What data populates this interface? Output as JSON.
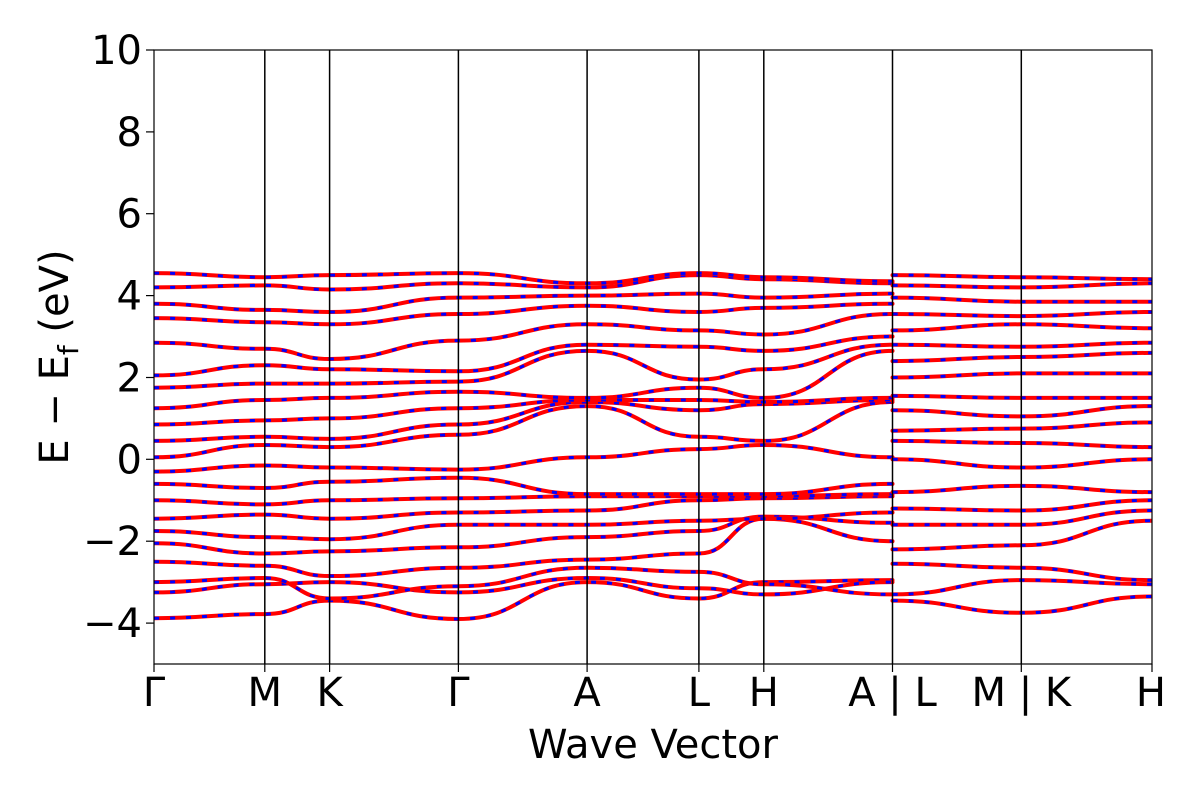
{
  "chart_data": {
    "type": "line",
    "title": "",
    "xlabel": "Wave Vector",
    "ylabel": "E − E_f (eV)",
    "ylabel_parts": {
      "pre": "E  −  E",
      "sub": "f",
      "post": " (eV)"
    },
    "ylim": [
      -5,
      10
    ],
    "yticks": [
      -4,
      -2,
      0,
      2,
      4,
      6,
      8,
      10
    ],
    "ytick_labels": [
      "−4",
      "−2",
      "0",
      "2",
      "4",
      "6",
      "8",
      "10"
    ],
    "xlim": [
      0,
      1
    ],
    "xticks": [
      0.0,
      0.111,
      0.176,
      0.305,
      0.434,
      0.546,
      0.611,
      0.74,
      0.869,
      1.0
    ],
    "xtick_labels": [
      "Γ",
      "M",
      "K",
      "Γ",
      "A",
      "L",
      "H",
      "A | L",
      "M | K",
      "H"
    ],
    "grid": false,
    "legend": "none",
    "colors": {
      "band_primary": "#ff0000",
      "band_secondary": "#0000ff",
      "axis": "#000000"
    },
    "series": [
      {
        "x": [
          0.0,
          0.111,
          0.176,
          0.305,
          0.434,
          0.546,
          0.611,
          0.74
        ],
        "y": [
          -3.88,
          -3.78,
          -3.45,
          -3.9,
          -3.0,
          -3.4,
          -3.0,
          -2.95
        ]
      },
      {
        "x": [
          0.0,
          0.111,
          0.176,
          0.305,
          0.434,
          0.546,
          0.611,
          0.74
        ],
        "y": [
          -3.25,
          -3.05,
          -3.0,
          -3.25,
          -2.9,
          -3.15,
          -3.3,
          -3.0
        ]
      },
      {
        "x": [
          0.0,
          0.111,
          0.176,
          0.305,
          0.434,
          0.546,
          0.611,
          0.74
        ],
        "y": [
          -3.0,
          -2.9,
          -3.4,
          -3.1,
          -2.65,
          -2.75,
          -3.05,
          -3.3
        ]
      },
      {
        "x": [
          0.0,
          0.111,
          0.176,
          0.305,
          0.434,
          0.546,
          0.611,
          0.74
        ],
        "y": [
          -2.5,
          -2.6,
          -2.85,
          -2.65,
          -2.45,
          -2.3,
          -1.45,
          -2.0
        ]
      },
      {
        "x": [
          0.0,
          0.111,
          0.176,
          0.305,
          0.434,
          0.546,
          0.611,
          0.74
        ],
        "y": [
          -2.05,
          -2.3,
          -2.25,
          -2.15,
          -1.9,
          -1.75,
          -1.4,
          -1.55
        ]
      },
      {
        "x": [
          0.0,
          0.111,
          0.176,
          0.305,
          0.434,
          0.546,
          0.611,
          0.74
        ],
        "y": [
          -1.75,
          -1.9,
          -1.95,
          -1.6,
          -1.6,
          -1.5,
          -1.45,
          -1.3
        ]
      },
      {
        "x": [
          0.0,
          0.111,
          0.176,
          0.305,
          0.434,
          0.546,
          0.611,
          0.74
        ],
        "y": [
          -1.45,
          -1.35,
          -1.45,
          -1.3,
          -1.25,
          -1.0,
          -0.95,
          -0.9
        ]
      },
      {
        "x": [
          0.0,
          0.111,
          0.176,
          0.305,
          0.434,
          0.546,
          0.611,
          0.74
        ],
        "y": [
          -1.0,
          -1.1,
          -1.0,
          -0.95,
          -0.9,
          -0.9,
          -0.9,
          -0.85
        ]
      },
      {
        "x": [
          0.0,
          0.111,
          0.176,
          0.305,
          0.434,
          0.546,
          0.611,
          0.74
        ],
        "y": [
          -0.6,
          -0.7,
          -0.55,
          -0.45,
          -0.85,
          -0.85,
          -0.85,
          -0.6
        ]
      },
      {
        "x": [
          0.0,
          0.111,
          0.176,
          0.305,
          0.434,
          0.546,
          0.611,
          0.74
        ],
        "y": [
          -0.3,
          -0.15,
          -0.2,
          -0.25,
          0.05,
          0.25,
          0.35,
          0.05
        ]
      },
      {
        "x": [
          0.0,
          0.111,
          0.176,
          0.305,
          0.434,
          0.546,
          0.611,
          0.74
        ],
        "y": [
          0.05,
          0.35,
          0.3,
          0.6,
          1.3,
          0.55,
          0.45,
          1.4
        ]
      },
      {
        "x": [
          0.0,
          0.111,
          0.176,
          0.305,
          0.434,
          0.546,
          0.611,
          0.74
        ],
        "y": [
          0.45,
          0.55,
          0.5,
          0.85,
          1.4,
          1.2,
          1.35,
          1.45
        ]
      },
      {
        "x": [
          0.0,
          0.111,
          0.176,
          0.305,
          0.434,
          0.546,
          0.611,
          0.74
        ],
        "y": [
          0.85,
          0.95,
          1.0,
          1.25,
          1.45,
          1.45,
          1.4,
          1.5
        ]
      },
      {
        "x": [
          0.0,
          0.111,
          0.176,
          0.305,
          0.434,
          0.546,
          0.611,
          0.74
        ],
        "y": [
          1.25,
          1.45,
          1.5,
          1.65,
          1.5,
          1.75,
          1.5,
          2.65
        ]
      },
      {
        "x": [
          0.0,
          0.111,
          0.176,
          0.305,
          0.434,
          0.546,
          0.611,
          0.74
        ],
        "y": [
          1.75,
          1.85,
          1.85,
          1.9,
          2.65,
          1.95,
          2.2,
          2.8
        ]
      },
      {
        "x": [
          0.0,
          0.111,
          0.176,
          0.305,
          0.434,
          0.546,
          0.611,
          0.74
        ],
        "y": [
          2.05,
          2.3,
          2.2,
          2.15,
          2.8,
          2.75,
          2.65,
          3.0
        ]
      },
      {
        "x": [
          0.0,
          0.111,
          0.176,
          0.305,
          0.434,
          0.546,
          0.611,
          0.74
        ],
        "y": [
          2.85,
          2.7,
          2.45,
          2.9,
          3.3,
          3.15,
          3.05,
          3.55
        ]
      },
      {
        "x": [
          0.0,
          0.111,
          0.176,
          0.305,
          0.434,
          0.546,
          0.611,
          0.74
        ],
        "y": [
          3.45,
          3.35,
          3.3,
          3.55,
          3.75,
          3.6,
          3.7,
          3.8
        ]
      },
      {
        "x": [
          0.0,
          0.111,
          0.176,
          0.305,
          0.434,
          0.546,
          0.611,
          0.74
        ],
        "y": [
          3.8,
          3.65,
          3.6,
          3.95,
          4.0,
          4.05,
          3.95,
          4.05
        ]
      },
      {
        "x": [
          0.0,
          0.111,
          0.176,
          0.305,
          0.434,
          0.546,
          0.611,
          0.74
        ],
        "y": [
          4.2,
          4.25,
          4.15,
          4.3,
          4.2,
          4.5,
          4.4,
          4.3
        ]
      },
      {
        "x": [
          0.0,
          0.111,
          0.176,
          0.305,
          0.434,
          0.546,
          0.611,
          0.74
        ],
        "y": [
          4.55,
          4.45,
          4.5,
          4.55,
          4.3,
          4.55,
          4.45,
          4.35
        ]
      },
      {
        "x": [
          0.74,
          0.869,
          1.0
        ],
        "y": [
          -3.45,
          -3.75,
          -3.35
        ]
      },
      {
        "x": [
          0.74,
          0.869,
          1.0
        ],
        "y": [
          -3.3,
          -2.95,
          -3.05
        ]
      },
      {
        "x": [
          0.74,
          0.869,
          1.0
        ],
        "y": [
          -2.55,
          -2.65,
          -2.95
        ]
      },
      {
        "x": [
          0.74,
          0.869,
          1.0
        ],
        "y": [
          -2.2,
          -2.1,
          -1.5
        ]
      },
      {
        "x": [
          0.74,
          0.869,
          1.0
        ],
        "y": [
          -1.6,
          -1.6,
          -1.25
        ]
      },
      {
        "x": [
          0.74,
          0.869,
          1.0
        ],
        "y": [
          -1.2,
          -1.25,
          -1.0
        ]
      },
      {
        "x": [
          0.74,
          0.869,
          1.0
        ],
        "y": [
          -0.8,
          -0.65,
          -0.8
        ]
      },
      {
        "x": [
          0.74,
          0.869,
          1.0
        ],
        "y": [
          0.0,
          -0.2,
          0.0
        ]
      },
      {
        "x": [
          0.74,
          0.869,
          1.0
        ],
        "y": [
          0.45,
          0.4,
          0.3
        ]
      },
      {
        "x": [
          0.74,
          0.869,
          1.0
        ],
        "y": [
          0.7,
          0.75,
          0.9
        ]
      },
      {
        "x": [
          0.74,
          0.869,
          1.0
        ],
        "y": [
          1.2,
          1.05,
          1.3
        ]
      },
      {
        "x": [
          0.74,
          0.869,
          1.0
        ],
        "y": [
          1.55,
          1.5,
          1.5
        ]
      },
      {
        "x": [
          0.74,
          0.869,
          1.0
        ],
        "y": [
          2.0,
          2.1,
          2.1
        ]
      },
      {
        "x": [
          0.74,
          0.869,
          1.0
        ],
        "y": [
          2.4,
          2.5,
          2.6
        ]
      },
      {
        "x": [
          0.74,
          0.869,
          1.0
        ],
        "y": [
          2.8,
          2.75,
          2.85
        ]
      },
      {
        "x": [
          0.74,
          0.869,
          1.0
        ],
        "y": [
          3.15,
          3.3,
          3.2
        ]
      },
      {
        "x": [
          0.74,
          0.869,
          1.0
        ],
        "y": [
          3.55,
          3.5,
          3.6
        ]
      },
      {
        "x": [
          0.74,
          0.869,
          1.0
        ],
        "y": [
          3.95,
          3.85,
          3.85
        ]
      },
      {
        "x": [
          0.74,
          0.869,
          1.0
        ],
        "y": [
          4.25,
          4.2,
          4.3
        ]
      },
      {
        "x": [
          0.74,
          0.869,
          1.0
        ],
        "y": [
          4.5,
          4.45,
          4.4
        ]
      }
    ]
  }
}
